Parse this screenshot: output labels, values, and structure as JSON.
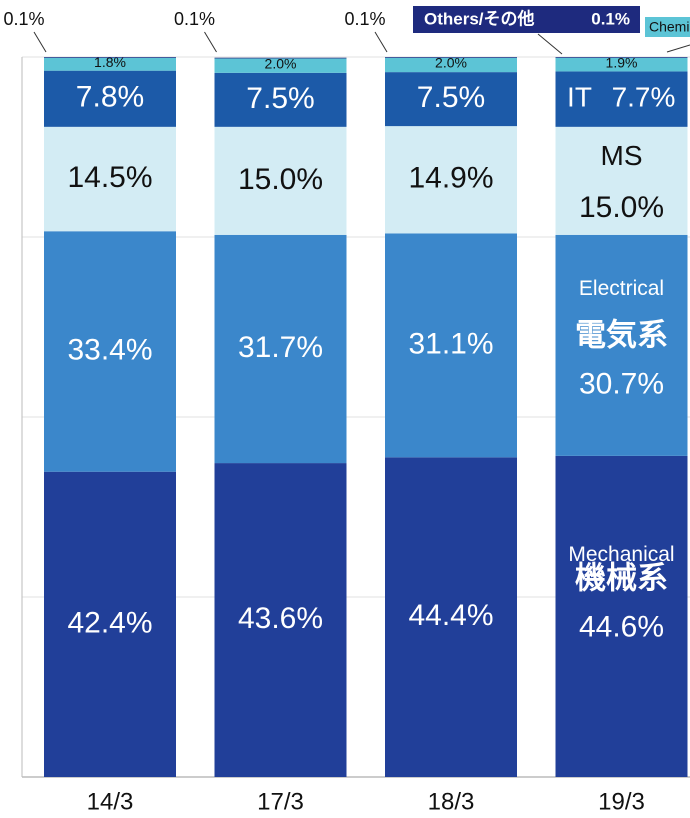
{
  "chart_data": {
    "type": "stacked_bar_100",
    "categories": [
      "14/3",
      "17/3",
      "18/3",
      "19/3"
    ],
    "ylim": [
      0,
      100
    ],
    "yticks": [
      0,
      25,
      50,
      75,
      100
    ],
    "grid": true,
    "series": [
      {
        "name": "Mechanical",
        "name_ja": "機械系",
        "color": "#213f99",
        "values": [
          42.4,
          43.6,
          44.4,
          44.6
        ],
        "value_labels": [
          "42.4%",
          "43.6%",
          "44.4%",
          "44.6%"
        ]
      },
      {
        "name": "Electrical",
        "name_ja": "電気系",
        "color": "#3b87cb",
        "values": [
          33.4,
          31.7,
          31.1,
          30.7
        ],
        "value_labels": [
          "33.4%",
          "31.7%",
          "31.1%",
          "30.7%"
        ]
      },
      {
        "name": "MS",
        "color": "#d3ecf4",
        "values": [
          14.5,
          15.0,
          14.9,
          15.0
        ],
        "value_labels": [
          "14.5%",
          "15.0%",
          "14.9%",
          "15.0%"
        ]
      },
      {
        "name": "IT",
        "color": "#1c5aa8",
        "values": [
          7.8,
          7.5,
          7.5,
          7.7
        ],
        "value_labels": [
          "7.8%",
          "7.5%",
          "7.5%",
          "7.7%"
        ]
      },
      {
        "name": "Chemical",
        "color": "#5cc4d6",
        "values": [
          1.8,
          2.0,
          2.0,
          1.9
        ],
        "value_labels": [
          "1.8%",
          "2.0%",
          "2.0%",
          "1.9%"
        ]
      },
      {
        "name": "Others/その他",
        "color": "#1e2a7e",
        "values": [
          0.1,
          0.1,
          0.1,
          0.1
        ],
        "value_labels": [
          "0.1%",
          "0.1%",
          "0.1%",
          "0.1%"
        ]
      }
    ]
  }
}
